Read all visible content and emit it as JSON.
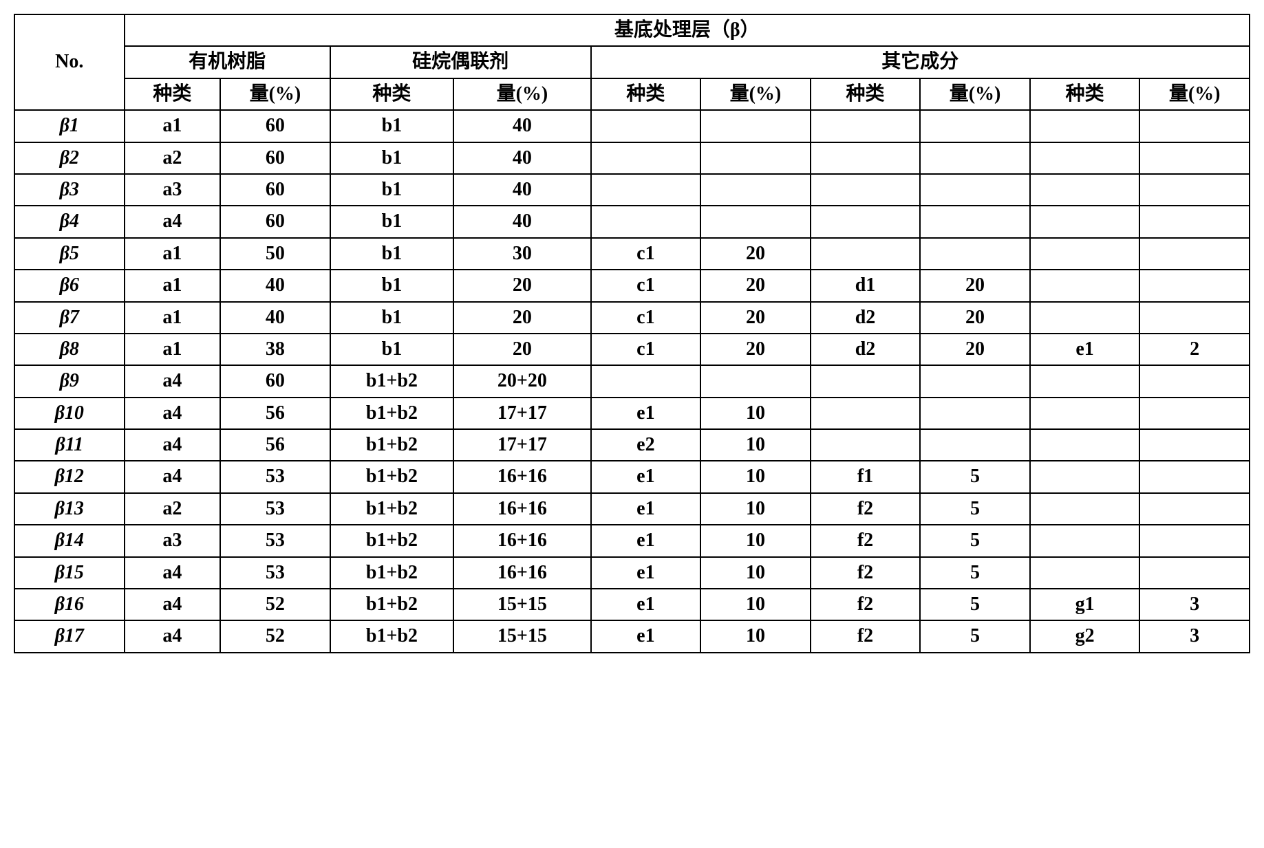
{
  "header": {
    "no": "No.",
    "group_title": "基底处理层（β）",
    "sub1": "有机树脂",
    "sub2": "硅烷偶联剂",
    "sub3": "其它成分",
    "type": "种类",
    "amount": "量(%)"
  },
  "rows": [
    {
      "no": "β1",
      "a_t": "a1",
      "a_a": "60",
      "b_t": "b1",
      "b_a": "40",
      "c_t": "",
      "c_a": "",
      "d_t": "",
      "d_a": "",
      "e_t": "",
      "e_a": ""
    },
    {
      "no": "β2",
      "a_t": "a2",
      "a_a": "60",
      "b_t": "b1",
      "b_a": "40",
      "c_t": "",
      "c_a": "",
      "d_t": "",
      "d_a": "",
      "e_t": "",
      "e_a": ""
    },
    {
      "no": "β3",
      "a_t": "a3",
      "a_a": "60",
      "b_t": "b1",
      "b_a": "40",
      "c_t": "",
      "c_a": "",
      "d_t": "",
      "d_a": "",
      "e_t": "",
      "e_a": ""
    },
    {
      "no": "β4",
      "a_t": "a4",
      "a_a": "60",
      "b_t": "b1",
      "b_a": "40",
      "c_t": "",
      "c_a": "",
      "d_t": "",
      "d_a": "",
      "e_t": "",
      "e_a": ""
    },
    {
      "no": "β5",
      "a_t": "a1",
      "a_a": "50",
      "b_t": "b1",
      "b_a": "30",
      "c_t": "c1",
      "c_a": "20",
      "d_t": "",
      "d_a": "",
      "e_t": "",
      "e_a": ""
    },
    {
      "no": "β6",
      "a_t": "a1",
      "a_a": "40",
      "b_t": "b1",
      "b_a": "20",
      "c_t": "c1",
      "c_a": "20",
      "d_t": "d1",
      "d_a": "20",
      "e_t": "",
      "e_a": ""
    },
    {
      "no": "β7",
      "a_t": "a1",
      "a_a": "40",
      "b_t": "b1",
      "b_a": "20",
      "c_t": "c1",
      "c_a": "20",
      "d_t": "d2",
      "d_a": "20",
      "e_t": "",
      "e_a": ""
    },
    {
      "no": "β8",
      "a_t": "a1",
      "a_a": "38",
      "b_t": "b1",
      "b_a": "20",
      "c_t": "c1",
      "c_a": "20",
      "d_t": "d2",
      "d_a": "20",
      "e_t": "e1",
      "e_a": "2"
    },
    {
      "no": "β9",
      "a_t": "a4",
      "a_a": "60",
      "b_t": "b1+b2",
      "b_a": "20+20",
      "c_t": "",
      "c_a": "",
      "d_t": "",
      "d_a": "",
      "e_t": "",
      "e_a": ""
    },
    {
      "no": "β10",
      "a_t": "a4",
      "a_a": "56",
      "b_t": "b1+b2",
      "b_a": "17+17",
      "c_t": "e1",
      "c_a": "10",
      "d_t": "",
      "d_a": "",
      "e_t": "",
      "e_a": ""
    },
    {
      "no": "β11",
      "a_t": "a4",
      "a_a": "56",
      "b_t": "b1+b2",
      "b_a": "17+17",
      "c_t": "e2",
      "c_a": "10",
      "d_t": "",
      "d_a": "",
      "e_t": "",
      "e_a": ""
    },
    {
      "no": "β12",
      "a_t": "a4",
      "a_a": "53",
      "b_t": "b1+b2",
      "b_a": "16+16",
      "c_t": "e1",
      "c_a": "10",
      "d_t": "f1",
      "d_a": "5",
      "e_t": "",
      "e_a": ""
    },
    {
      "no": "β13",
      "a_t": "a2",
      "a_a": "53",
      "b_t": "b1+b2",
      "b_a": "16+16",
      "c_t": "e1",
      "c_a": "10",
      "d_t": "f2",
      "d_a": "5",
      "e_t": "",
      "e_a": ""
    },
    {
      "no": "β14",
      "a_t": "a3",
      "a_a": "53",
      "b_t": "b1+b2",
      "b_a": "16+16",
      "c_t": "e1",
      "c_a": "10",
      "d_t": "f2",
      "d_a": "5",
      "e_t": "",
      "e_a": ""
    },
    {
      "no": "β15",
      "a_t": "a4",
      "a_a": "53",
      "b_t": "b1+b2",
      "b_a": "16+16",
      "c_t": "e1",
      "c_a": "10",
      "d_t": "f2",
      "d_a": "5",
      "e_t": "",
      "e_a": ""
    },
    {
      "no": "β16",
      "a_t": "a4",
      "a_a": "52",
      "b_t": "b1+b2",
      "b_a": "15+15",
      "c_t": "e1",
      "c_a": "10",
      "d_t": "f2",
      "d_a": "5",
      "e_t": "g1",
      "e_a": "3"
    },
    {
      "no": "β17",
      "a_t": "a4",
      "a_a": "52",
      "b_t": "b1+b2",
      "b_a": "15+15",
      "c_t": "e1",
      "c_a": "10",
      "d_t": "f2",
      "d_a": "5",
      "e_t": "g2",
      "e_a": "3"
    }
  ]
}
